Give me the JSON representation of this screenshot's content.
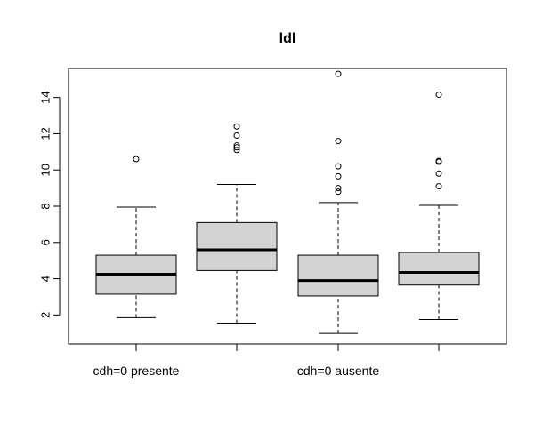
{
  "chart_data": {
    "type": "boxplot",
    "title": "ldl",
    "xlabel": "",
    "ylabel": "",
    "ylim": [
      0.4,
      15.6
    ],
    "yticks": [
      2,
      4,
      6,
      8,
      10,
      12,
      14
    ],
    "category_labels": [
      "cdh=0 presente",
      "",
      "cdh=0 ausente",
      ""
    ],
    "box_fill": "#d3d3d3",
    "boxes": [
      {
        "whisker_low": 1.85,
        "q1": 3.15,
        "median": 4.25,
        "q3": 5.3,
        "whisker_high": 7.95,
        "outliers": [
          10.6
        ]
      },
      {
        "whisker_low": 1.55,
        "q1": 4.45,
        "median": 5.6,
        "q3": 7.1,
        "whisker_high": 9.2,
        "outliers": [
          11.1,
          11.25,
          11.35,
          11.9,
          12.4
        ]
      },
      {
        "whisker_low": 0.98,
        "q1": 3.05,
        "median": 3.9,
        "q3": 5.3,
        "whisker_high": 8.2,
        "outliers": [
          8.8,
          9.0,
          9.65,
          10.2,
          11.6,
          15.3
        ]
      },
      {
        "whisker_low": 1.75,
        "q1": 3.65,
        "median": 4.35,
        "q3": 5.45,
        "whisker_high": 8.05,
        "outliers": [
          9.1,
          9.8,
          10.45,
          10.5,
          14.15
        ]
      }
    ]
  }
}
